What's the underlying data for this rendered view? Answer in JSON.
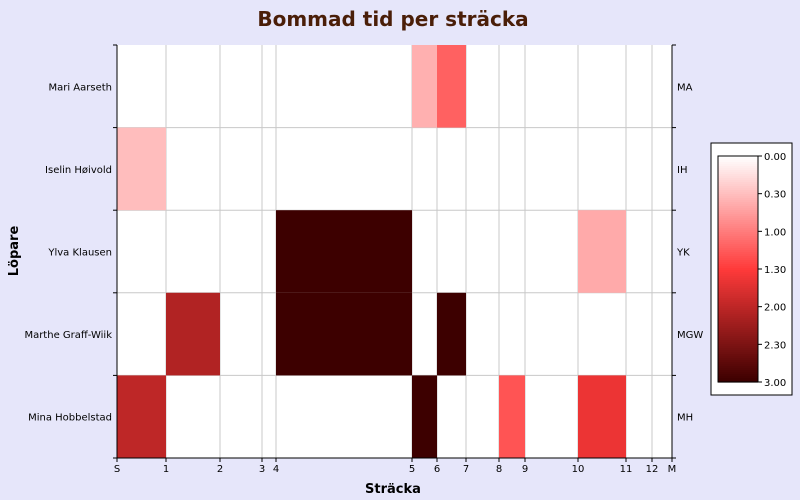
{
  "chart_data": {
    "type": "heatmap",
    "title": "Bommad tid per sträcka",
    "xlabel": "Sträcka",
    "ylabel": "Löpare",
    "x_ticks": [
      {
        "label": "S",
        "pos": 0
      },
      {
        "label": "1",
        "pos": 1
      },
      {
        "label": "2",
        "pos": 2
      },
      {
        "label": "3",
        "pos": 3
      },
      {
        "label": "4",
        "pos": 4
      },
      {
        "label": "5",
        "pos": 5
      },
      {
        "label": "6",
        "pos": 6
      },
      {
        "label": "7",
        "pos": 7
      },
      {
        "label": "8",
        "pos": 8
      },
      {
        "label": "9",
        "pos": 9
      },
      {
        "label": "10",
        "pos": 10
      },
      {
        "label": "11",
        "pos": 11
      },
      {
        "label": "12",
        "pos": 12
      },
      {
        "label": "M",
        "pos": 13
      }
    ],
    "runners": [
      {
        "name": "Mari Aarseth",
        "code": "MA"
      },
      {
        "name": "Iselin Høivold",
        "code": "IH"
      },
      {
        "name": "Ylva Klausen",
        "code": "YK"
      },
      {
        "name": "Marthe Graff-Wiik",
        "code": "MGW"
      },
      {
        "name": "Mina Hobbelstad",
        "code": "MH"
      }
    ],
    "cells": [
      {
        "runner": 0,
        "from": 5,
        "to": 6,
        "value": 0.6
      },
      {
        "runner": 0,
        "from": 6,
        "to": 7,
        "value": 1.2
      },
      {
        "runner": 1,
        "from": 0,
        "to": 1,
        "value": 0.5
      },
      {
        "runner": 2,
        "from": 4,
        "to": 5,
        "value": 3.0
      },
      {
        "runner": 2,
        "from": 10,
        "to": 11,
        "value": 0.65
      },
      {
        "runner": 3,
        "from": 1,
        "to": 2,
        "value": 2.1
      },
      {
        "runner": 3,
        "from": 4,
        "to": 5,
        "value": 3.0
      },
      {
        "runner": 3,
        "from": 6,
        "to": 7,
        "value": 3.0
      },
      {
        "runner": 4,
        "from": 0,
        "to": 1,
        "value": 2.0
      },
      {
        "runner": 4,
        "from": 5,
        "to": 6,
        "value": 3.0
      },
      {
        "runner": 4,
        "from": 8,
        "to": 9,
        "value": 1.3
      },
      {
        "runner": 4,
        "from": 10,
        "to": 11,
        "value": 1.65
      }
    ],
    "legend": {
      "labels": [
        "0.00",
        "0.30",
        "1.00",
        "1.30",
        "2.00",
        "2.30",
        "3.00"
      ],
      "min": 0,
      "max": 3,
      "colors": [
        "#ffffff",
        "#ff3a3a",
        "#3d0000"
      ]
    },
    "grid": true
  }
}
